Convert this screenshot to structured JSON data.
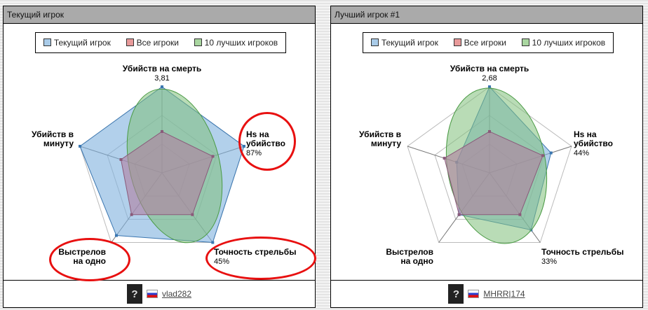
{
  "legend": [
    {
      "label": "Текущий игрок",
      "color": "#a9cbe8"
    },
    {
      "label": "Все игроки",
      "color": "#e89a9a"
    },
    {
      "label": "10 лучших игроков",
      "color": "#a9d6a0"
    }
  ],
  "axes": [
    "Убийств на смерть",
    "Hs на убийство",
    "Точность стрельбы",
    "Выстрелов на одно",
    "Убийств в минуту"
  ],
  "panels": [
    {
      "title": "Текущий игрок",
      "player": "vlad282",
      "help": "?",
      "labels": {
        "kd": "Убийств на смерть",
        "kd_val": "3,81",
        "hs": "Hs на убийство",
        "hs_val": "87%",
        "acc": "Точность стрельбы",
        "acc_val": "45%",
        "shots": "Выстрелов на одно",
        "kpm": "Убийств в минуту"
      },
      "chart_data": {
        "type": "radar",
        "current": [
          1.0,
          1.0,
          1.0,
          0.9,
          1.0
        ],
        "all": [
          0.48,
          0.62,
          0.6,
          0.6,
          0.5
        ]
      }
    },
    {
      "title": "Лучший игрок #1",
      "player": "MHRR|174",
      "help": "?",
      "labels": {
        "kd": "Убийств на смерть",
        "kd_val": "2,68",
        "hs": "Hs на убийство",
        "hs_val": "44%",
        "acc": "Точность стрельбы",
        "acc_val": "33%",
        "shots": "Выстрелов на одно",
        "kpm": "Убийств в минуту"
      },
      "chart_data": {
        "type": "radar",
        "current": [
          1.0,
          0.75,
          0.82,
          0.6,
          0.4
        ],
        "all": [
          0.48,
          0.65,
          0.6,
          0.6,
          0.55
        ]
      }
    }
  ]
}
